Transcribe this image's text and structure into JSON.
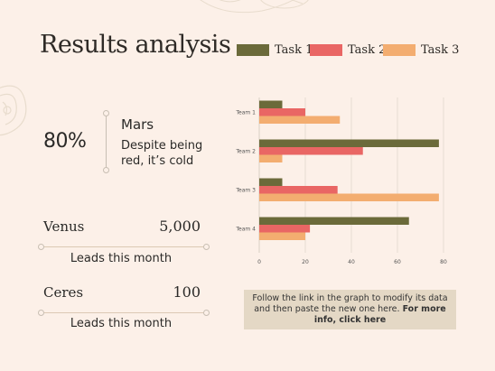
{
  "title": "Results analysis",
  "legend": [
    {
      "label": "Task 1",
      "color": "#6b6a3a"
    },
    {
      "label": "Task 2",
      "color": "#e96664"
    },
    {
      "label": "Task 3",
      "color": "#f3ad70"
    }
  ],
  "highlight": {
    "percent": "80%",
    "name": "Mars",
    "description_line1": "Despite being",
    "description_line2": "red, it’s cold"
  },
  "stats": [
    {
      "name": "Venus",
      "value": "5,000",
      "caption": "Leads this month"
    },
    {
      "name": "Ceres",
      "value": "100",
      "caption": "Leads this month"
    }
  ],
  "info": {
    "text": "Follow the link in the graph to modify its data and then paste the new one here. ",
    "link_text": "For more info, click here"
  },
  "chart_data": {
    "type": "bar",
    "orientation": "horizontal",
    "categories": [
      "Team 1",
      "Team 2",
      "Team 3",
      "Team 4"
    ],
    "series": [
      {
        "name": "Task 1",
        "values": [
          10,
          78,
          10,
          65
        ],
        "color": "#6b6a3a"
      },
      {
        "name": "Task 2",
        "values": [
          20,
          45,
          34,
          22
        ],
        "color": "#e96664"
      },
      {
        "name": "Task 3",
        "values": [
          35,
          10,
          78,
          20
        ],
        "color": "#f3ad70"
      }
    ],
    "xlim": [
      0,
      80
    ],
    "xticks": [
      "0",
      "20",
      "40",
      "60",
      "80"
    ],
    "grid": "vertical"
  }
}
